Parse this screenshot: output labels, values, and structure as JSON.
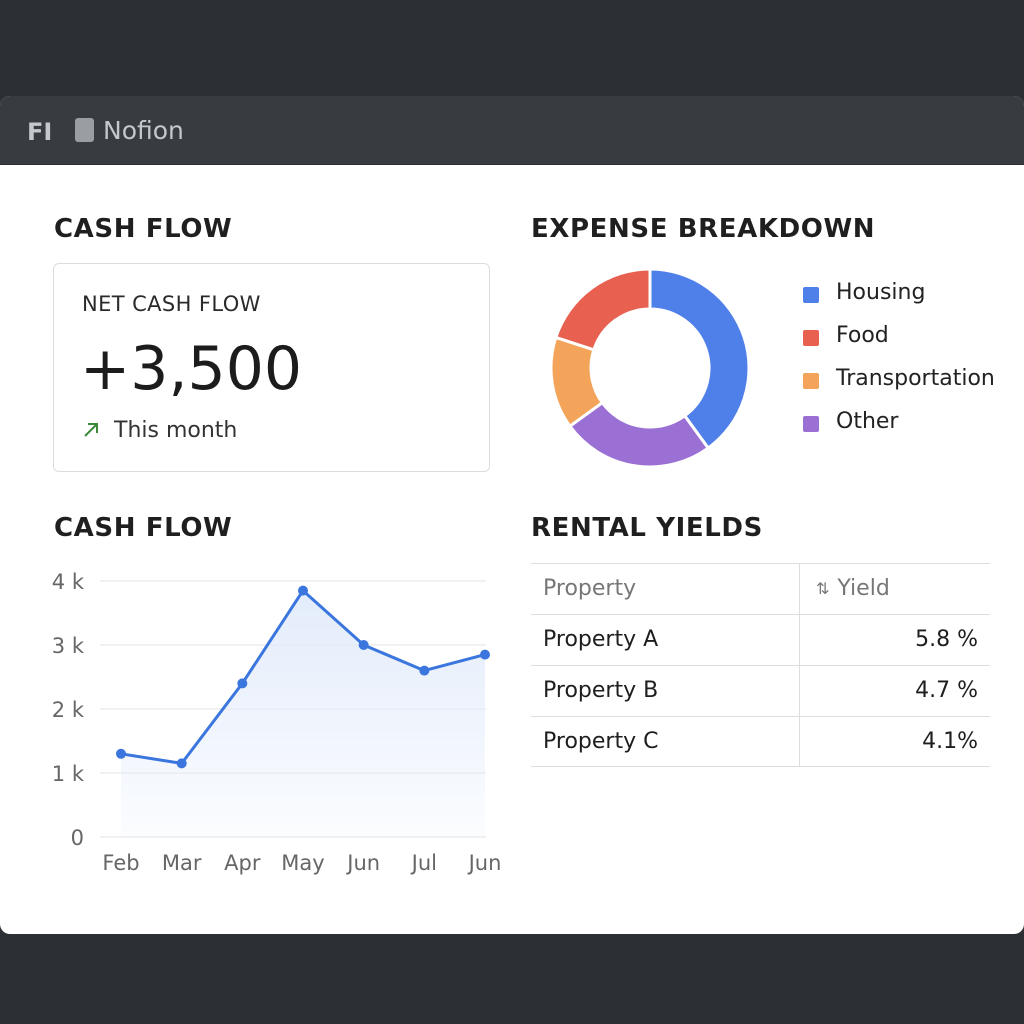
{
  "titlebar": {
    "short_label": "FI",
    "app_name": "Nofion",
    "doc_icon": "document-icon"
  },
  "cash_flow_summary": {
    "section_title": "CASH FLOW",
    "card_label": "NET CASH FLOW",
    "value": "+3,500",
    "trend_icon": "arrow-up-right-icon",
    "trend_color": "#3a8a3a",
    "trend_text": "This month"
  },
  "expense_breakdown": {
    "section_title": "EXPENSE BREAKDOWN",
    "legend": [
      {
        "label": "Housing",
        "color": "#4f7fe9"
      },
      {
        "label": "Food",
        "color": "#e8604f"
      },
      {
        "label": "Transportation",
        "color": "#f3a45a"
      },
      {
        "label": "Other",
        "color": "#9a70d4"
      }
    ]
  },
  "cash_flow_chart": {
    "section_title": "CASH FLOW"
  },
  "rental_yields": {
    "section_title": "RENTAL YIELDS",
    "headers": {
      "property": "Property",
      "yield": "Yield",
      "sort_icon": "sort-icon"
    },
    "rows": [
      {
        "property": "Property A",
        "yield": "5.8 %"
      },
      {
        "property": "Property B",
        "yield": "4.7 %"
      },
      {
        "property": "Property C",
        "yield": "4.1%"
      }
    ]
  },
  "chart_data": [
    {
      "type": "pie",
      "categories": [
        "Housing",
        "Food",
        "Transportation",
        "Other"
      ],
      "values": [
        40,
        20,
        15,
        25
      ],
      "colors": [
        "#4f7fe9",
        "#e8604f",
        "#f3a45a",
        "#9a70d4"
      ],
      "order": [
        "Housing",
        "Other",
        "Transportation",
        "Food"
      ],
      "donut": true,
      "legend": "right"
    },
    {
      "type": "area",
      "categories": [
        "Feb",
        "Mar",
        "Apr",
        "May",
        "Jun",
        "Jul",
        "Jun"
      ],
      "values": [
        1300,
        1150,
        2400,
        3850,
        3000,
        2600,
        2850
      ],
      "ylim": [
        0,
        4000
      ],
      "yticks": [
        "0",
        "1 k",
        "2 k",
        "3 k",
        "4 k"
      ],
      "ytick_values": [
        0,
        1000,
        2000,
        3000,
        4000
      ],
      "grid": true,
      "line_color": "#3a76dd",
      "fill_color": "#e3ecfb"
    }
  ]
}
